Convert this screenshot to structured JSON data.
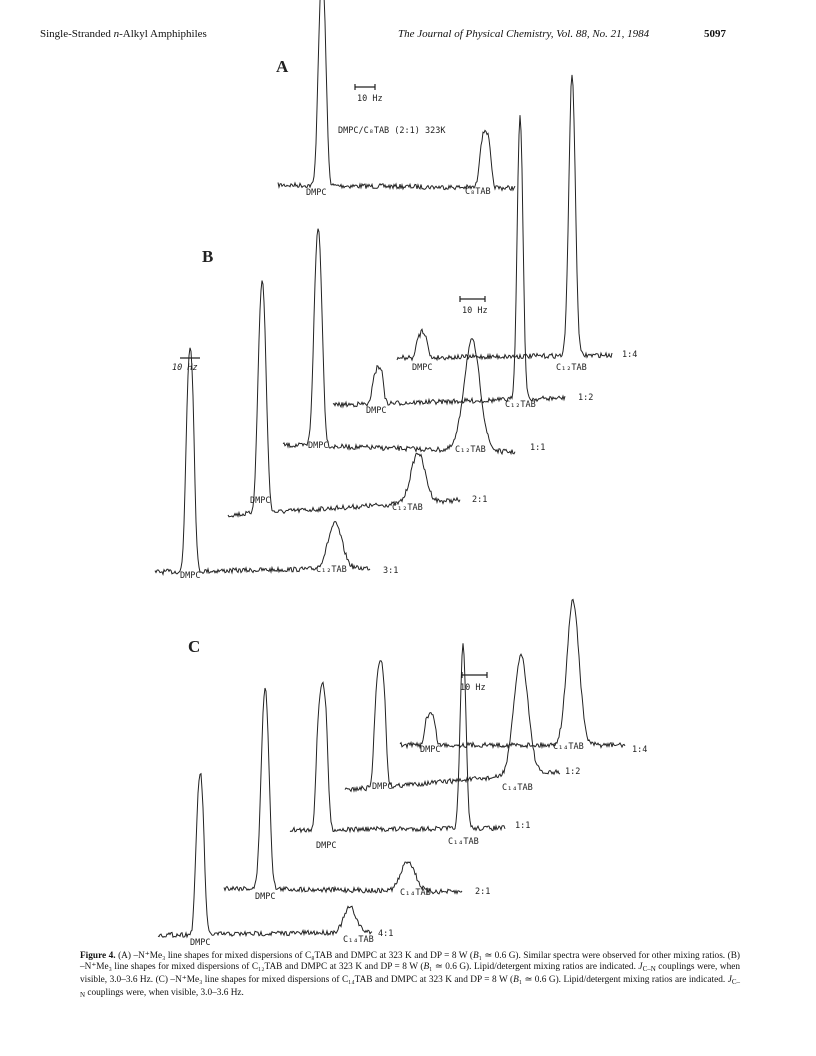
{
  "header": {
    "left": [
      "Single-Stranded ",
      "n",
      "-Alkyl Amphiphiles"
    ],
    "center": "The Journal of Physical Chemistry, Vol. 88, No. 21, 1984",
    "page": "5097"
  },
  "figure": {
    "panels": [
      {
        "label": "A",
        "scale": "10 Hz",
        "condition": "DMPC/C₈TAB (2:1) 323K",
        "traces": [
          {
            "lipid": "DMPC",
            "detergent": "C₈TAB"
          }
        ]
      },
      {
        "label": "B",
        "scale": "10 Hz",
        "scale_alt": "10 Hz",
        "traces": [
          {
            "lipid": "DMPC",
            "detergent": "C₁₂TAB",
            "ratio": "3:1"
          },
          {
            "lipid": "DMPC",
            "detergent": "C₁₂TAB",
            "ratio": "2:1"
          },
          {
            "lipid": "DMPC",
            "detergent": "C₁₂TAB",
            "ratio": "1:1"
          },
          {
            "lipid": "DMPC",
            "detergent": "C₁₂TAB",
            "ratio": "1:2"
          },
          {
            "lipid": "DMPC",
            "detergent": "C₁₂TAB",
            "ratio": "1:4"
          }
        ]
      },
      {
        "label": "C",
        "scale": "10 Hz",
        "traces": [
          {
            "lipid": "DMPC",
            "detergent": "C₁₄TAB",
            "ratio": "4:1"
          },
          {
            "lipid": "DMPC",
            "detergent": "C₁₄TAB",
            "ratio": "2:1"
          },
          {
            "lipid": "DMPC",
            "detergent": "C₁₄TAB",
            "ratio": "1:1"
          },
          {
            "lipid": "DMPC",
            "detergent": "C₁₄TAB",
            "ratio": "1:2"
          },
          {
            "lipid": "DMPC",
            "detergent": "C₁₄TAB",
            "ratio": "1:4"
          }
        ]
      }
    ]
  },
  "caption": [
    "Figure 4.",
    " (A) –N⁺Me₃ line shapes for mixed dispersions of C₈TAB and DMPC at 323 K and DP = 8 W (",
    "B",
    "₁ ≃ 0.6 G). Similar spectra were observed for other mixing ratios. (B) –N⁺Me₃ line shapes for mixed dispersions of C₁₂TAB and DMPC at 323 K and DP = 8 W (",
    "B",
    "₁ ≃ 0.6 G). Lipid/detergent mixing ratios are indicated. ",
    "J",
    "C–N",
    " couplings were, when visible, 3.0–3.6 Hz. (C) –N⁺Me₃ line shapes for mixed dispersions of C₁₄TAB and DMPC at 323 K and DP = 8 W (",
    "B",
    "₁ ≃ 0.6 G). Lipid/detergent mixing ratios are indicated. ",
    "J",
    "C–N",
    " couplings were, when visible, 3.0–3.6 Hz."
  ]
}
